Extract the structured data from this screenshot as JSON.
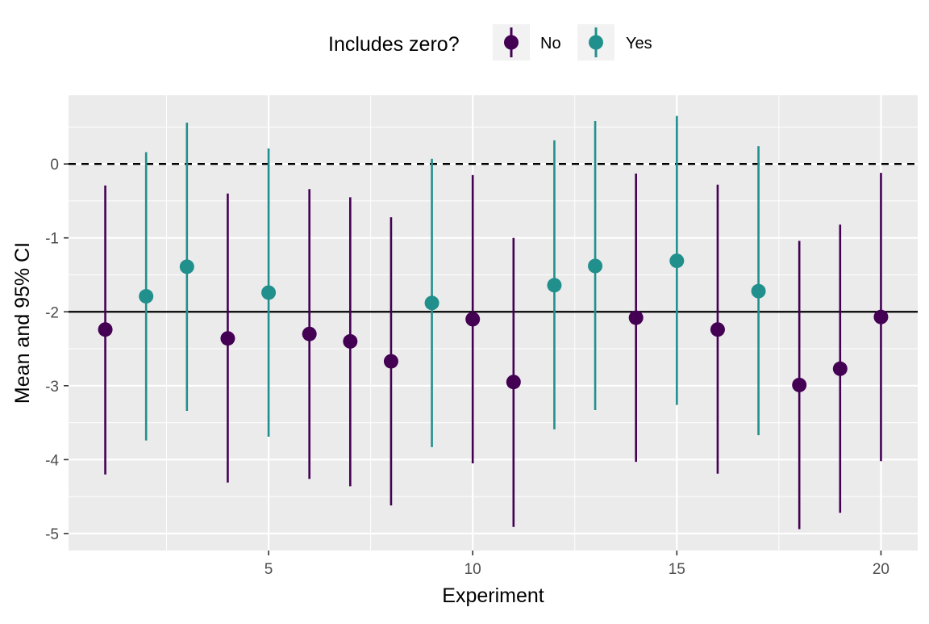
{
  "legend": {
    "title": "Includes zero?",
    "items": [
      {
        "label": "No",
        "color": "#440154"
      },
      {
        "label": "Yes",
        "color": "#21908C"
      }
    ]
  },
  "chart_data": {
    "type": "scatter",
    "xlabel": "Experiment",
    "ylabel": "Mean and 95% CI",
    "xlim": [
      0.1,
      20.9
    ],
    "ylim": [
      -5.23,
      0.93
    ],
    "x_ticks": [
      5,
      10,
      15,
      20
    ],
    "y_ticks": [
      0,
      -1,
      -2,
      -3,
      -4,
      -5
    ],
    "reference_lines": [
      {
        "y": 0,
        "style": "dashed",
        "color": "#000000"
      },
      {
        "y": -2,
        "style": "solid",
        "color": "#000000"
      }
    ],
    "grid": true,
    "legend_position": "top",
    "series": [
      {
        "name": "No",
        "color": "#440154",
        "points": [
          {
            "x": 1,
            "mean": -2.24,
            "lower": -4.2,
            "upper": -0.29
          },
          {
            "x": 4,
            "mean": -2.36,
            "lower": -4.31,
            "upper": -0.4
          },
          {
            "x": 6,
            "mean": -2.3,
            "lower": -4.26,
            "upper": -0.34
          },
          {
            "x": 7,
            "mean": -2.4,
            "lower": -4.36,
            "upper": -0.45
          },
          {
            "x": 8,
            "mean": -2.67,
            "lower": -4.62,
            "upper": -0.72
          },
          {
            "x": 10,
            "mean": -2.1,
            "lower": -4.05,
            "upper": -0.15
          },
          {
            "x": 11,
            "mean": -2.95,
            "lower": -4.91,
            "upper": -1.0
          },
          {
            "x": 14,
            "mean": -2.08,
            "lower": -4.03,
            "upper": -0.13
          },
          {
            "x": 16,
            "mean": -2.24,
            "lower": -4.19,
            "upper": -0.28
          },
          {
            "x": 18,
            "mean": -2.99,
            "lower": -4.94,
            "upper": -1.04
          },
          {
            "x": 19,
            "mean": -2.77,
            "lower": -4.72,
            "upper": -0.82
          },
          {
            "x": 20,
            "mean": -2.07,
            "lower": -4.02,
            "upper": -0.12
          }
        ]
      },
      {
        "name": "Yes",
        "color": "#21908C",
        "points": [
          {
            "x": 2,
            "mean": -1.79,
            "lower": -3.74,
            "upper": 0.16
          },
          {
            "x": 3,
            "mean": -1.39,
            "lower": -3.34,
            "upper": 0.56
          },
          {
            "x": 5,
            "mean": -1.74,
            "lower": -3.69,
            "upper": 0.21
          },
          {
            "x": 9,
            "mean": -1.88,
            "lower": -3.83,
            "upper": 0.07
          },
          {
            "x": 12,
            "mean": -1.64,
            "lower": -3.59,
            "upper": 0.32
          },
          {
            "x": 13,
            "mean": -1.38,
            "lower": -3.33,
            "upper": 0.58
          },
          {
            "x": 15,
            "mean": -1.31,
            "lower": -3.26,
            "upper": 0.65
          },
          {
            "x": 17,
            "mean": -1.72,
            "lower": -3.67,
            "upper": 0.24
          }
        ]
      }
    ]
  }
}
